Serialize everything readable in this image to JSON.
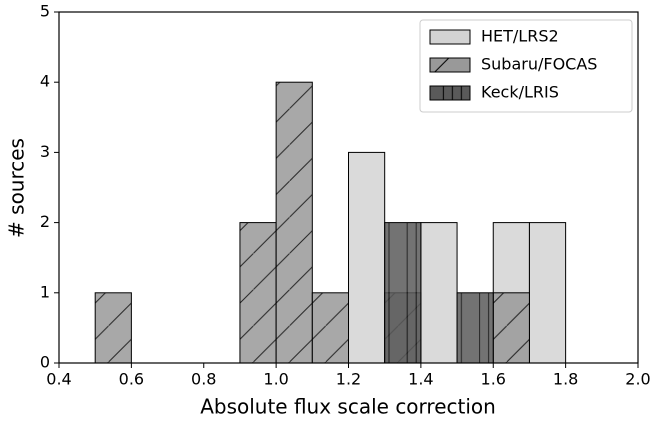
{
  "chart_data": {
    "type": "histogram",
    "xlabel": "Absolute flux scale correction",
    "ylabel": "# sources",
    "bins": [
      0.4,
      0.5,
      0.6,
      0.7,
      0.8,
      0.9,
      1.0,
      1.1,
      1.2,
      1.3,
      1.4,
      1.5,
      1.6,
      1.7,
      1.8,
      1.9,
      2.0
    ],
    "series": [
      {
        "name": "HET/LRS2",
        "color": "#d3d3d3",
        "values": [
          0,
          0,
          0,
          0,
          0,
          0,
          0,
          0,
          3,
          0,
          2,
          0,
          2,
          2,
          0,
          0
        ]
      },
      {
        "name": "Subaru/FOCAS",
        "color": "#999999",
        "values": [
          0,
          1,
          0,
          0,
          0,
          2,
          4,
          1,
          0,
          1,
          0,
          0,
          1,
          0,
          0,
          0
        ]
      },
      {
        "name": "Keck/LRIS",
        "color": "#5a5a5a",
        "values": [
          0,
          0,
          0,
          0,
          0,
          0,
          0,
          0,
          0,
          2,
          0,
          1,
          0,
          0,
          0,
          0
        ]
      }
    ],
    "xlim": [
      0.4,
      2.0
    ],
    "xticks": [
      0.4,
      0.6,
      0.8,
      {
        "value": 1.0,
        "label": "1.0"
      },
      1.2,
      1.4,
      1.6,
      1.8,
      {
        "value": 2.0,
        "label": "2.0"
      }
    ],
    "ylim": [
      0,
      5
    ],
    "yticks": [
      0,
      1,
      2,
      3,
      4,
      5
    ],
    "legend": "upper right"
  }
}
